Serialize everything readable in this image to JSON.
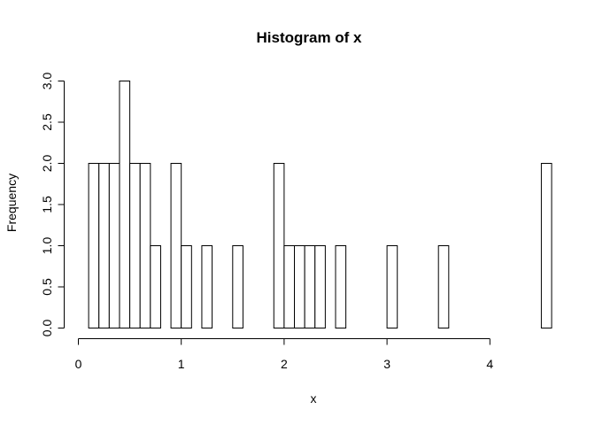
{
  "chart_data": {
    "type": "bar",
    "title": "Histogram of x",
    "xlabel": "x",
    "ylabel": "Frequency",
    "bin_width": 0.1,
    "x_start": 0.1,
    "values": [
      2,
      2,
      2,
      3,
      2,
      2,
      1,
      0,
      2,
      1,
      0,
      1,
      0,
      0,
      1,
      0,
      0,
      0,
      2,
      1,
      1,
      1,
      1,
      0,
      1,
      0,
      0,
      0,
      0,
      1,
      0,
      0,
      0,
      0,
      1,
      0,
      0,
      0,
      0,
      0,
      0,
      0,
      0,
      0,
      2
    ],
    "xlim": [
      0,
      4.5
    ],
    "ylim": [
      0,
      3
    ],
    "x_ticks": [
      "0",
      "1",
      "2",
      "3",
      "4"
    ],
    "y_ticks": [
      "0.0",
      "0.5",
      "1.0",
      "1.5",
      "2.0",
      "2.5",
      "3.0"
    ],
    "grid": false
  }
}
